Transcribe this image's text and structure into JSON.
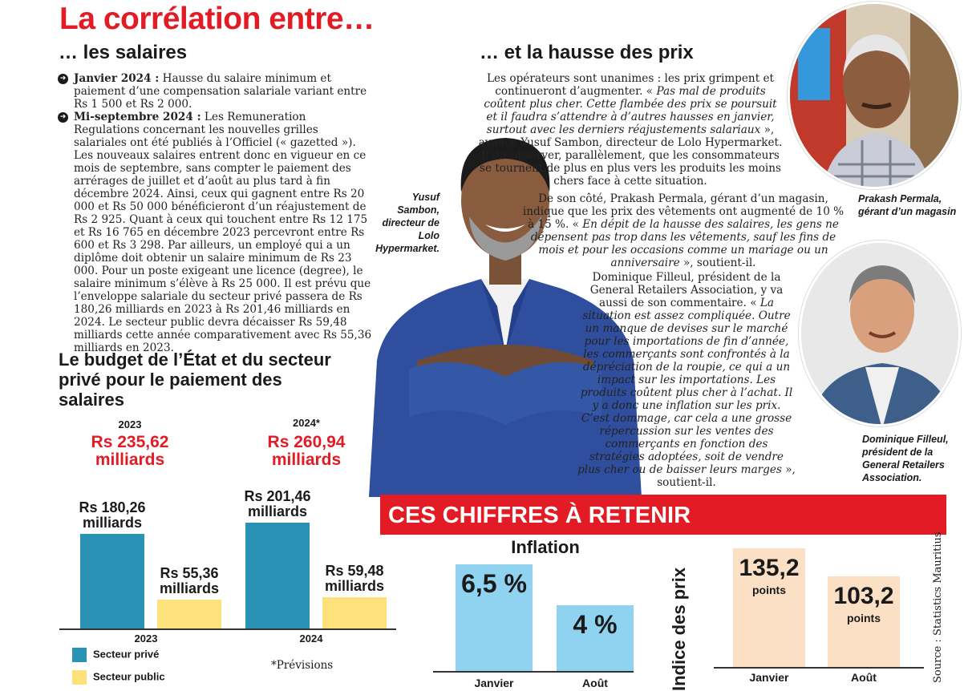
{
  "title": "La corrélation entre…",
  "salaires": {
    "heading": "… les salaires",
    "items": [
      {
        "label": "Janvier 2024 :",
        "text": " Hausse du salaire minimum et paiement d’une compensation salariale variant entre Rs 1 500 et Rs 2 000."
      },
      {
        "label": "Mi-septembre 2024 :",
        "text": " Les Remuneration Regulations concernant les nouvelles grilles salariales ont été publiés à l’Officiel (« gazetted »). Les nouveaux salaires entrent donc en vigueur en ce mois de septembre, sans compter le paiement des arrérages de juillet et d’août au plus tard à fin décembre 2024. Ainsi, ceux qui gagnent entre Rs 20 000 et Rs 50 000 bénéficieront d’un réajustement de Rs 2 925. Quant à ceux qui touchent entre Rs 12 175 et Rs 16 765 en décembre 2023 percevront entre Rs 600 et Rs 3 298. Par ailleurs, un employé qui a un diplôme doit obtenir un salaire minimum de Rs 23 000. Pour un poste exigeant une licence (degree), le salaire minimum s’élève à Rs 25 000. Il est prévu que l’enveloppe salariale du secteur privé passera de Rs 180,26 milliards en 2023 à Rs 201,46 milliards en 2024. Le secteur public devra décaisser Rs 59,48 milliards cette année comparativement avec Rs 55,36 milliards en 2023."
      }
    ]
  },
  "budget": {
    "heading": "Le budget de l’État et du secteur privé pour le paiement des salaires",
    "totals": [
      {
        "year": "2023",
        "value": "Rs 235,62 milliards"
      },
      {
        "year": "2024*",
        "value": "Rs 260,94 milliards"
      }
    ],
    "legend": {
      "private": "Secteur privé",
      "public": "Secteur public"
    },
    "note": "*Prévisions"
  },
  "chart_data": [
    {
      "type": "bar",
      "categories": [
        "2023",
        "2024"
      ],
      "series": [
        {
          "name": "Secteur privé",
          "values": [
            180.26,
            201.46
          ],
          "labels": [
            "Rs 180,26 milliards",
            "Rs 201,46 milliards"
          ],
          "color": "#2a93b5"
        },
        {
          "name": "Secteur public",
          "values": [
            55.36,
            59.48
          ],
          "labels": [
            "Rs 55,36 milliards",
            "Rs 59,48 milliards"
          ],
          "color": "#fde17b"
        }
      ]
    },
    {
      "type": "bar",
      "title": "Inflation",
      "categories": [
        "Janvier",
        "Août"
      ],
      "values": [
        6.5,
        4
      ],
      "labels": [
        "6,5 %",
        "4 %"
      ],
      "color": "#8fd3f0"
    },
    {
      "type": "bar",
      "ylabel": "Indice des prix",
      "categories": [
        "Janvier",
        "Août"
      ],
      "values": [
        135.2,
        103.2
      ],
      "labels": [
        "135,2",
        "103,2"
      ],
      "unit": "points",
      "color": "#fbe0c6"
    }
  ],
  "hausse": {
    "heading": "… et la hausse des prix",
    "p1_a": "Les opérateurs sont unanimes : les prix grimpent et continueront d’augmenter. « ",
    "p1_q": "Pas mal de produits coûtent plus cher. Cette flambée des prix se poursuit et il faudra s’attendre à d’autres hausses en janvier, surtout avec les derniers réajustements salariaux",
    "p1_b": " », avance Yusuf Sambon, directeur de Lolo Hypermarket. Il dit observer, parallèlement, que les consommateurs se tournent de plus en plus vers les produits les moins chers face à cette situation.",
    "p2_a": "De son côté, Prakash Permala, gérant d’un magasin, indique que les prix des vêtements ont augmenté de 10 % à 15 %. « ",
    "p2_q": "En dépit de la hausse des salaires, les gens ne dépensent pas trop dans les vêtements, sauf les fins de mois et pour les occasions comme un mariage ou un anniversaire",
    "p2_b": " », soutient-il.",
    "p3_a": "Dominique Filleul, président de la General Retailers Association, y va aussi de son commentaire. « ",
    "p3_q": "La situation est assez compliquée. Outre un manque de devises sur le marché pour les importations de fin d’année, les commerçants sont confrontés à la dépréciation de la roupie, ce qui a un impact sur les importations. Les produits coûtent plus cher à l’achat. Il y a donc une inflation sur les prix. C’est dommage, car cela a une grosse répercussion sur les ventes des commerçants en fonction des stratégies adoptées, soit de vendre plus cher ou de baisser leurs marges",
    "p3_b": " », soutient-il."
  },
  "captions": {
    "yusuf": "Yusuf Sambon, directeur de Lolo Hypermarket.",
    "prakash": "Prakash Permala, gérant d’un magasin",
    "dominique": "Dominique Filleul, président de la General Retailers Association."
  },
  "ces": {
    "banner": "CES CHIFFRES À RETENIR",
    "source": "Source : Statistics Mauritius"
  }
}
